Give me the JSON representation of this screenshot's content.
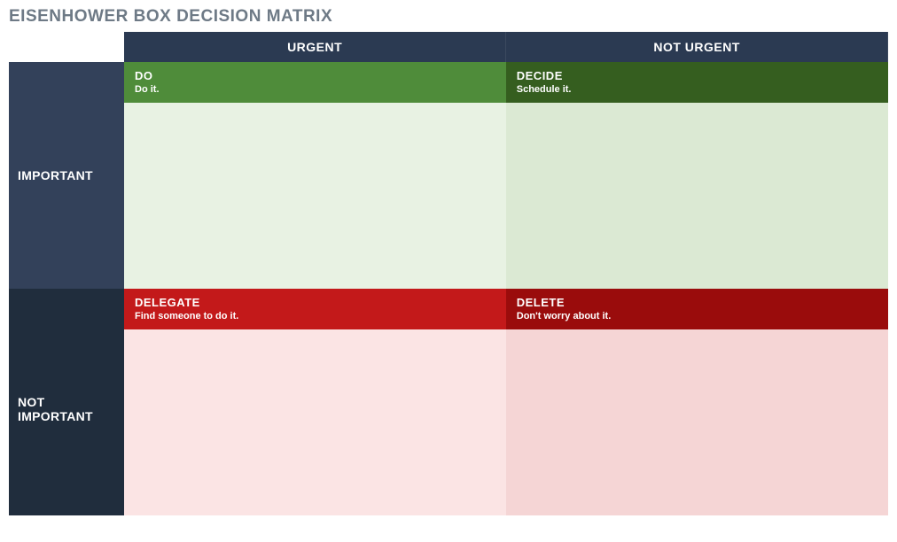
{
  "title": "EISENHOWER BOX DECISION MATRIX",
  "colors": {
    "header_dark": "#2b3a52",
    "row_important_bg": "#33415a",
    "row_notimportant_bg": "#202d3d",
    "do_head": "#4f8c3a",
    "decide_head": "#355e1f",
    "green_body_light": "#e8f2e3",
    "green_body_dark": "#dbe9d3",
    "delegate_head": "#c3191a",
    "delete_head": "#9a0c0c",
    "red_body_light": "#fbe4e4",
    "red_body_dark": "#f5d5d5",
    "title_color": "#6e7a86"
  },
  "columns": {
    "urgent": "URGENT",
    "not_urgent": "NOT URGENT"
  },
  "rows": {
    "important": "IMPORTANT",
    "not_important": "NOT\nIMPORTANT"
  },
  "quadrants": {
    "do": {
      "action": "DO",
      "sub": "Do it."
    },
    "decide": {
      "action": "DECIDE",
      "sub": "Schedule it."
    },
    "delegate": {
      "action": "DELEGATE",
      "sub": "Find someone to do it."
    },
    "delete": {
      "action": "DELETE",
      "sub": "Don't worry about it."
    }
  }
}
